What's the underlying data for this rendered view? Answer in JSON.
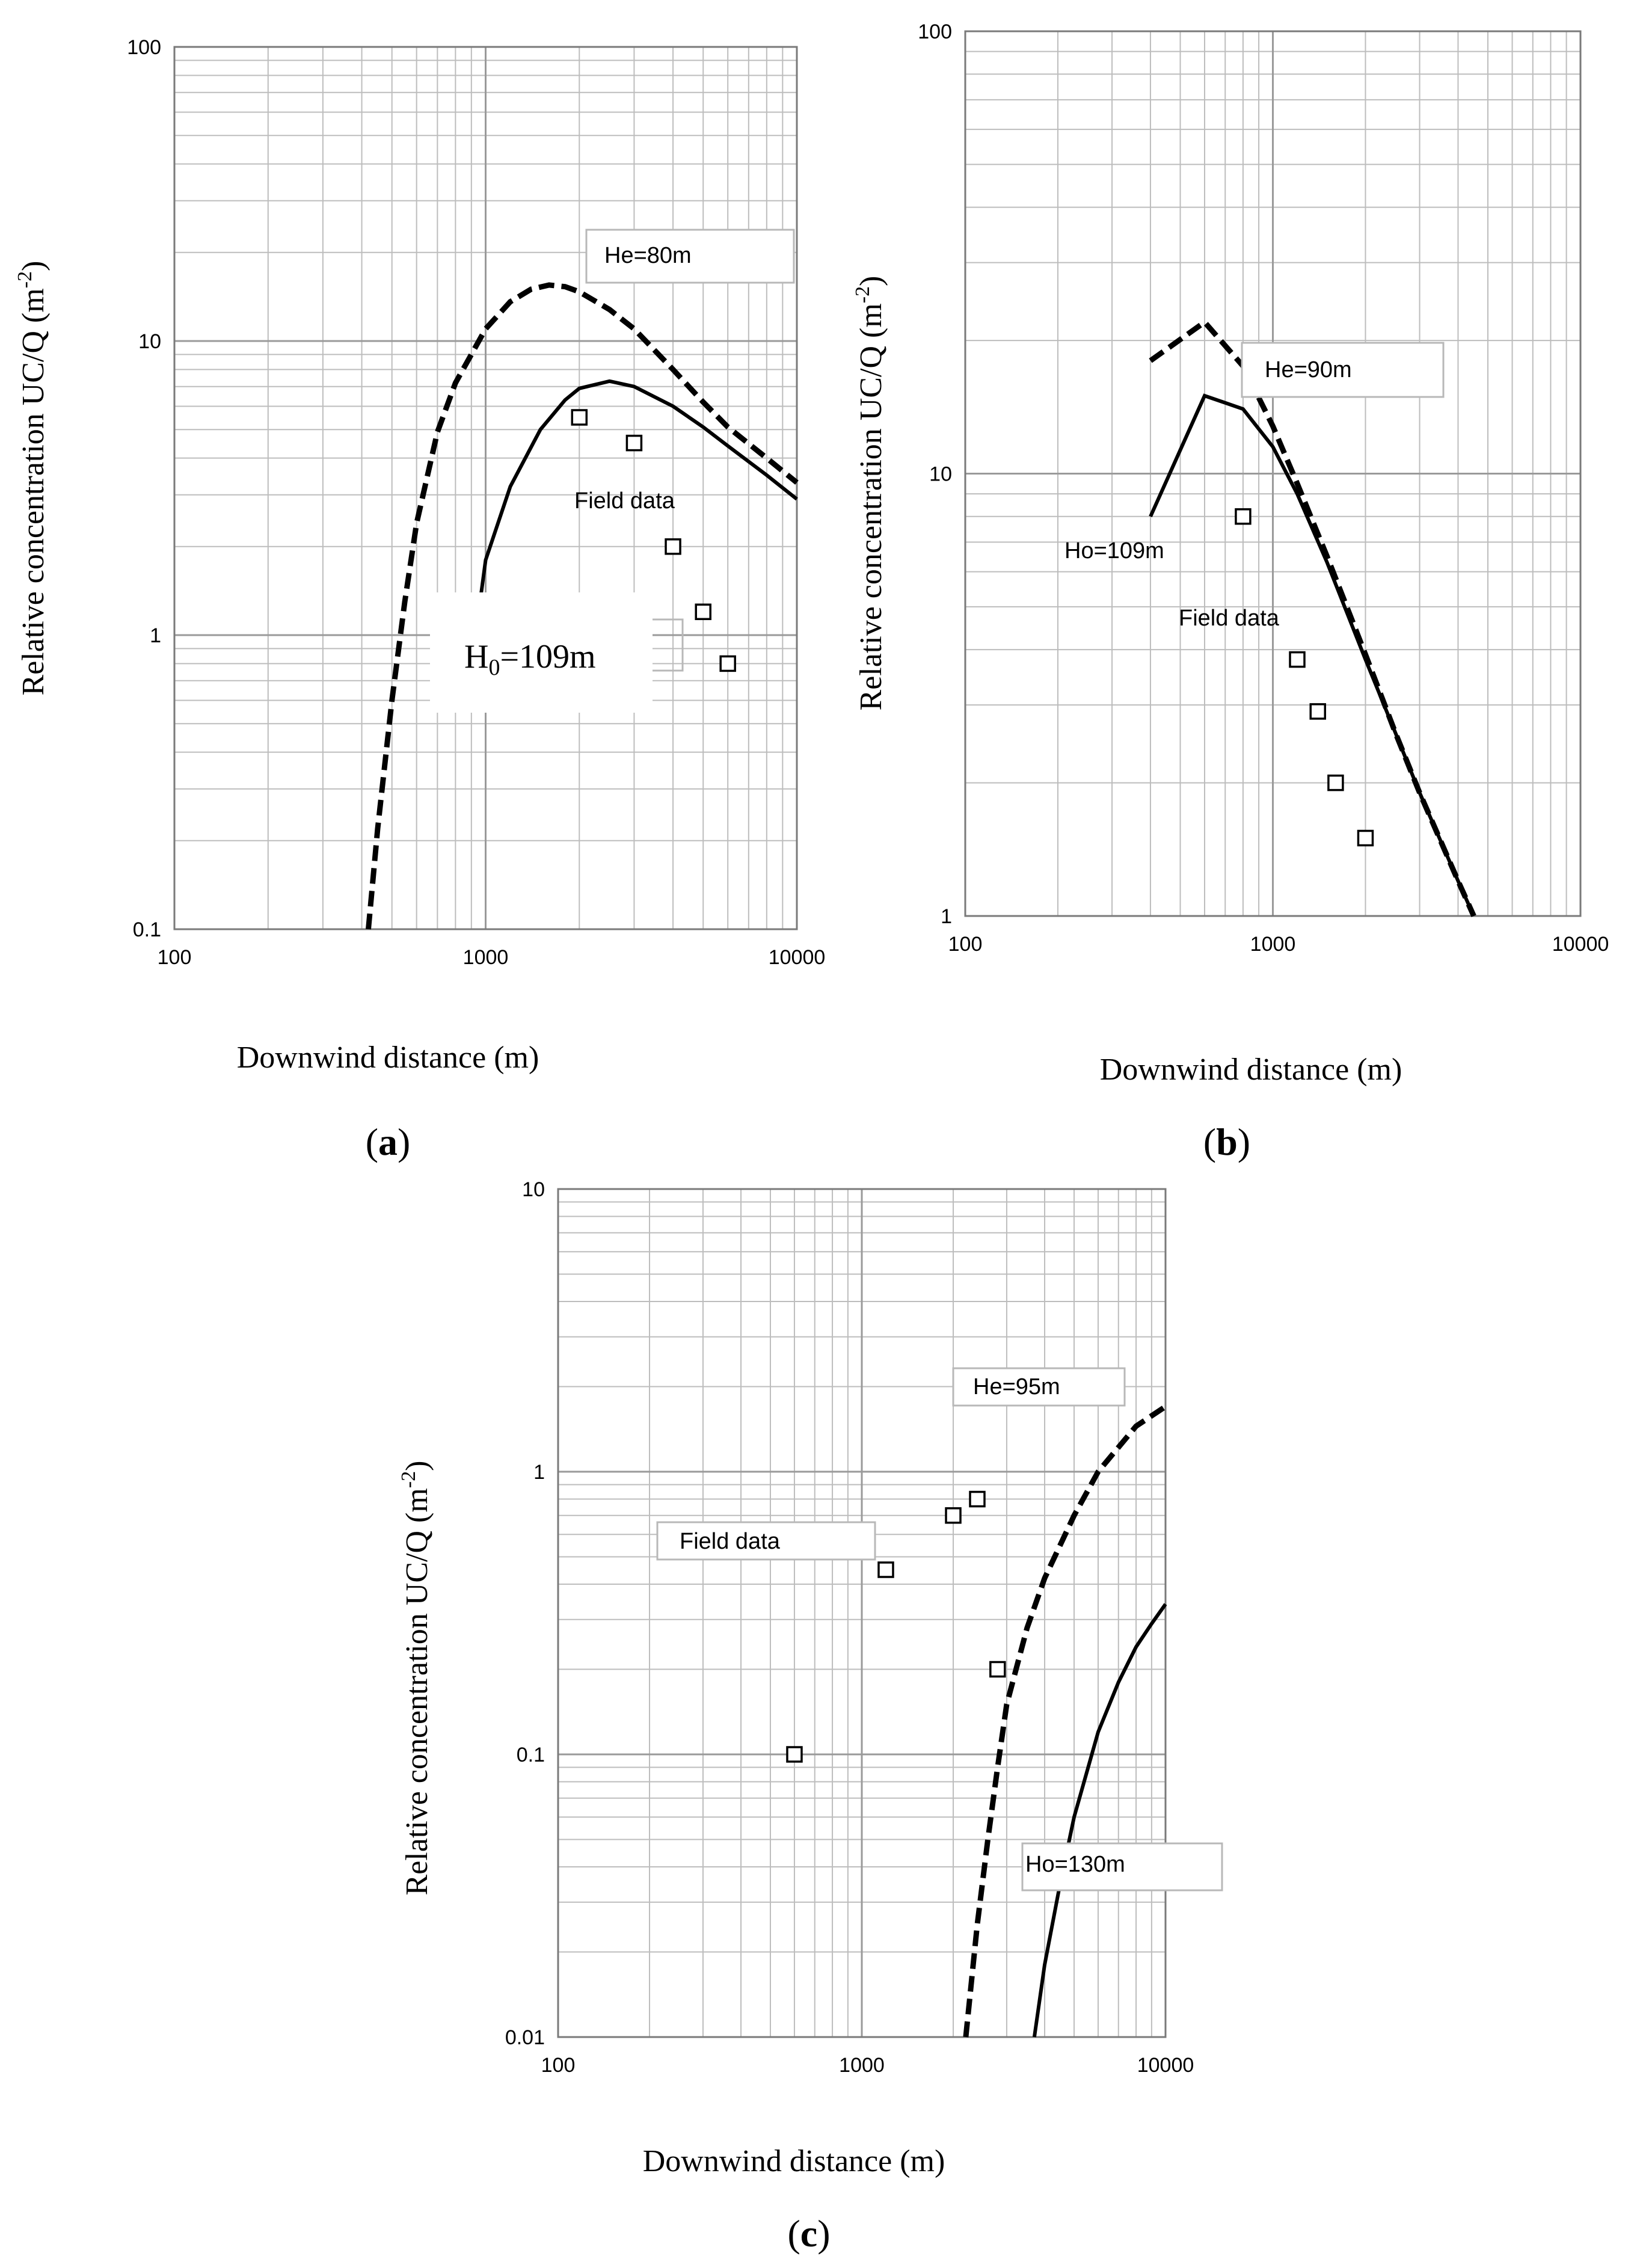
{
  "chart_data": [
    {
      "type": "line",
      "panel_label": "(a)",
      "xlabel": "Downwind distance (m)",
      "ylabel": "Relative concentration UC/Q (m",
      "ylabel_sup": "-2",
      "ylabel_close": ")",
      "xscale": "log",
      "yscale": "log",
      "xlim": [
        100,
        10000
      ],
      "ylim": [
        0.1,
        100
      ],
      "x_tick_labels": [
        "100",
        "1000",
        "10000"
      ],
      "y_tick_labels": [
        "0.1",
        "1",
        "10",
        "100"
      ],
      "grid": true,
      "series": [
        {
          "name": "He=80m",
          "style": "dashed",
          "x": [
            420,
            450,
            500,
            550,
            600,
            700,
            800,
            1000,
            1200,
            1400,
            1600,
            1800,
            2000,
            2500,
            3000,
            4000,
            5000,
            6000,
            8000,
            10000
          ],
          "y": [
            0.1,
            0.22,
            0.6,
            1.3,
            2.4,
            4.9,
            7.2,
            11.0,
            13.6,
            15.0,
            15.5,
            15.3,
            14.7,
            12.8,
            11.0,
            8.0,
            6.2,
            5.1,
            4.0,
            3.3
          ]
        },
        {
          "name": "H0=109m",
          "style": "solid",
          "x": [
            950,
            1000,
            1200,
            1500,
            1800,
            2000,
            2500,
            3000,
            4000,
            5000,
            6000,
            8000,
            10000
          ],
          "y": [
            1.2,
            1.8,
            3.2,
            5.0,
            6.3,
            6.9,
            7.3,
            7.0,
            6.0,
            5.1,
            4.4,
            3.5,
            2.9
          ]
        },
        {
          "name": "Field data",
          "style": "markers",
          "x": [
            2000,
            3000,
            4000,
            5000,
            6000
          ],
          "y": [
            5.5,
            4.5,
            2.0,
            1.2,
            0.8
          ]
        }
      ],
      "annotations": [
        {
          "text": "He=80m"
        },
        {
          "text": "Field data"
        },
        {
          "text": "H",
          "sub": "0",
          "rest": "=109m"
        }
      ]
    },
    {
      "type": "line",
      "panel_label": "(b)",
      "xlabel": "Downwind distance (m)",
      "ylabel": "Relative concentration UC/Q (m",
      "ylabel_sup": "-2",
      "ylabel_close": ")",
      "xscale": "log",
      "yscale": "log",
      "xlim": [
        100,
        10000
      ],
      "ylim": [
        1,
        100
      ],
      "x_tick_labels": [
        "100",
        "1000",
        "10000"
      ],
      "y_tick_labels": [
        "1",
        "10",
        "100"
      ],
      "grid": true,
      "series": [
        {
          "name": "He=90m",
          "style": "dashed",
          "x": [
            400,
            600,
            800,
            1000,
            1200,
            1500,
            2000,
            2500,
            3000,
            4000,
            4500
          ],
          "y": [
            18.0,
            22.0,
            17.5,
            12.8,
            9.5,
            6.5,
            3.9,
            2.6,
            1.9,
            1.2,
            1.0
          ]
        },
        {
          "name": "Ho=109m",
          "style": "solid",
          "x": [
            400,
            600,
            800,
            1000,
            1200,
            1500,
            2000,
            2500,
            3000,
            4000,
            4500
          ],
          "y": [
            8.0,
            15.0,
            14.0,
            11.5,
            9.0,
            6.3,
            3.8,
            2.6,
            1.9,
            1.2,
            1.0
          ]
        },
        {
          "name": "Field data",
          "style": "markers",
          "x": [
            800,
            1200,
            1400,
            1600,
            2000
          ],
          "y": [
            8.0,
            3.8,
            2.9,
            2.0,
            1.5
          ]
        }
      ],
      "annotations": [
        {
          "text": "He=90m"
        },
        {
          "text": "Ho=109m"
        },
        {
          "text": "Field data"
        }
      ]
    },
    {
      "type": "line",
      "panel_label": "(c)",
      "xlabel": "Downwind distance (m)",
      "ylabel": "Relative concentration UC/Q (m",
      "ylabel_sup": "-2",
      "ylabel_close": ")",
      "xscale": "log",
      "yscale": "log",
      "xlim": [
        100,
        10000
      ],
      "ylim": [
        0.01,
        10
      ],
      "x_tick_labels": [
        "100",
        "1000",
        "10000"
      ],
      "y_tick_labels": [
        "0.01",
        "0.1",
        "1",
        "10"
      ],
      "grid": true,
      "series": [
        {
          "name": "He=95m",
          "style": "dashed",
          "x": [
            2200,
            2400,
            2600,
            2800,
            3000,
            3500,
            4000,
            5000,
            6000,
            8000,
            10000
          ],
          "y": [
            0.01,
            0.025,
            0.05,
            0.09,
            0.15,
            0.28,
            0.42,
            0.7,
            1.0,
            1.45,
            1.7
          ]
        },
        {
          "name": "Ho=130m",
          "style": "solid",
          "x": [
            3700,
            4000,
            4500,
            5000,
            6000,
            7000,
            8000,
            9000,
            10000
          ],
          "y": [
            0.01,
            0.018,
            0.035,
            0.06,
            0.12,
            0.18,
            0.24,
            0.29,
            0.34
          ]
        },
        {
          "name": "Field data",
          "style": "markers",
          "x": [
            600,
            1200,
            2000,
            2400,
            2800
          ],
          "y": [
            0.1,
            0.45,
            0.7,
            0.8,
            0.2
          ]
        }
      ],
      "annotations": [
        {
          "text": "He=95m"
        },
        {
          "text": "Field data"
        },
        {
          "text": "Ho=130m"
        }
      ]
    }
  ]
}
